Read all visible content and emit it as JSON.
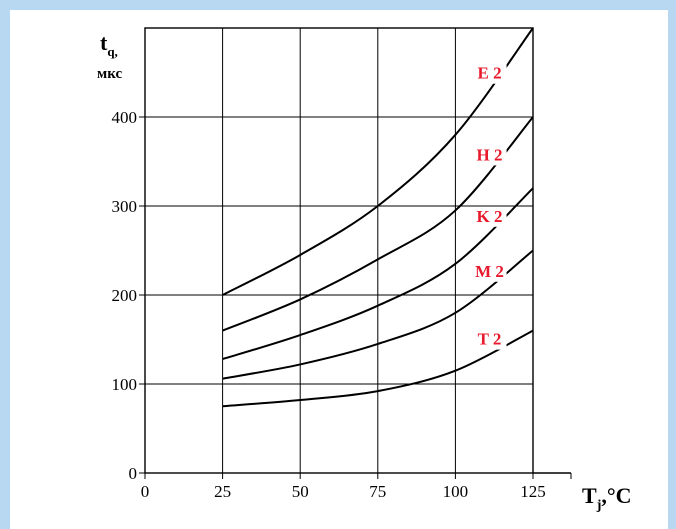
{
  "chart_data": {
    "type": "line",
    "title": "",
    "y_label_main": "t",
    "y_label_sub": "q,",
    "y_label_unit": "мкс",
    "x_label_main": "T",
    "x_label_sub": "j",
    "x_label_unit": ",°C",
    "xlim": [
      0,
      125
    ],
    "ylim": [
      0,
      500
    ],
    "x_ticks": [
      "0",
      "25",
      "50",
      "75",
      "100",
      "125"
    ],
    "y_ticks": [
      "0",
      "100",
      "200",
      "300",
      "400"
    ],
    "grid": true,
    "series": [
      {
        "name": "E2",
        "x": [
          25,
          50,
          75,
          100,
          125
        ],
        "y": [
          200,
          245,
          300,
          380,
          500
        ]
      },
      {
        "name": "H2",
        "x": [
          25,
          50,
          75,
          100,
          125
        ],
        "y": [
          160,
          195,
          240,
          295,
          400
        ]
      },
      {
        "name": "K2",
        "x": [
          25,
          50,
          75,
          100,
          125
        ],
        "y": [
          128,
          155,
          188,
          235,
          320
        ]
      },
      {
        "name": "M2",
        "x": [
          25,
          50,
          75,
          100,
          125
        ],
        "y": [
          106,
          122,
          145,
          180,
          250
        ]
      },
      {
        "name": "T2",
        "x": [
          25,
          50,
          75,
          100,
          125
        ],
        "y": [
          75,
          82,
          92,
          115,
          160
        ]
      }
    ]
  }
}
